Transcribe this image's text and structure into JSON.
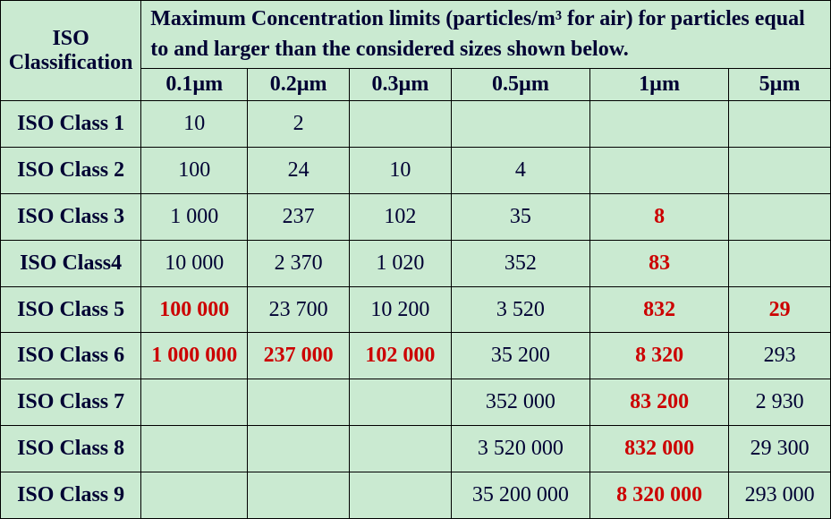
{
  "table": {
    "type": "table",
    "bg_color": "#caead1",
    "border_color": "#000000",
    "text_color": "#000033",
    "highlight_color": "#cc0000",
    "font_family": "Times New Roman",
    "font_size_pt": 18,
    "label_col_header": "ISO Classification",
    "span_header": "Maximum Concentration limits (particles/m³ for air) for particles equal to and larger than the considered sizes shown below.",
    "size_headers": [
      "0.1µm",
      "0.2µm",
      "0.3µm",
      "0.5µm",
      "1µm",
      "5µm"
    ],
    "rows": [
      {
        "label": "ISO Class 1",
        "cells": [
          {
            "v": "10",
            "hl": false
          },
          {
            "v": "2",
            "hl": false
          },
          {
            "v": "",
            "hl": false
          },
          {
            "v": "",
            "hl": false
          },
          {
            "v": "",
            "hl": false
          },
          {
            "v": "",
            "hl": false
          }
        ]
      },
      {
        "label": "ISO Class 2",
        "cells": [
          {
            "v": "100",
            "hl": false
          },
          {
            "v": "24",
            "hl": false
          },
          {
            "v": "10",
            "hl": false
          },
          {
            "v": "4",
            "hl": false
          },
          {
            "v": "",
            "hl": false
          },
          {
            "v": "",
            "hl": false
          }
        ]
      },
      {
        "label": "ISO Class 3",
        "cells": [
          {
            "v": "1 000",
            "hl": false
          },
          {
            "v": "237",
            "hl": false
          },
          {
            "v": "102",
            "hl": false
          },
          {
            "v": "35",
            "hl": false
          },
          {
            "v": "8",
            "hl": true
          },
          {
            "v": "",
            "hl": false
          }
        ]
      },
      {
        "label": "ISO Class4",
        "cells": [
          {
            "v": "10 000",
            "hl": false
          },
          {
            "v": "2 370",
            "hl": false
          },
          {
            "v": "1 020",
            "hl": false
          },
          {
            "v": "352",
            "hl": false
          },
          {
            "v": "83",
            "hl": true
          },
          {
            "v": "",
            "hl": false
          }
        ]
      },
      {
        "label": "ISO Class 5",
        "cells": [
          {
            "v": "100 000",
            "hl": true
          },
          {
            "v": "23 700",
            "hl": false
          },
          {
            "v": "10 200",
            "hl": false
          },
          {
            "v": "3 520",
            "hl": false
          },
          {
            "v": "832",
            "hl": true
          },
          {
            "v": "29",
            "hl": true
          }
        ]
      },
      {
        "label": "ISO Class 6",
        "cells": [
          {
            "v": "1 000 000",
            "hl": true
          },
          {
            "v": "237 000",
            "hl": true
          },
          {
            "v": "102 000",
            "hl": true
          },
          {
            "v": "35 200",
            "hl": false
          },
          {
            "v": "8 320",
            "hl": true
          },
          {
            "v": "293",
            "hl": false
          }
        ]
      },
      {
        "label": "ISO Class 7",
        "cells": [
          {
            "v": "",
            "hl": false
          },
          {
            "v": "",
            "hl": false
          },
          {
            "v": "",
            "hl": false
          },
          {
            "v": "352 000",
            "hl": false
          },
          {
            "v": "83 200",
            "hl": true
          },
          {
            "v": "2 930",
            "hl": false
          }
        ]
      },
      {
        "label": "ISO Class 8",
        "cells": [
          {
            "v": "",
            "hl": false
          },
          {
            "v": "",
            "hl": false
          },
          {
            "v": "",
            "hl": false
          },
          {
            "v": "3 520 000",
            "hl": false
          },
          {
            "v": "832 000",
            "hl": true
          },
          {
            "v": "29 300",
            "hl": false
          }
        ]
      },
      {
        "label": "ISO Class 9",
        "cells": [
          {
            "v": "",
            "hl": false
          },
          {
            "v": "",
            "hl": false
          },
          {
            "v": "",
            "hl": false
          },
          {
            "v": "35 200 000",
            "hl": false
          },
          {
            "v": "8 320 000",
            "hl": true
          },
          {
            "v": "293 000",
            "hl": false
          }
        ]
      }
    ]
  }
}
